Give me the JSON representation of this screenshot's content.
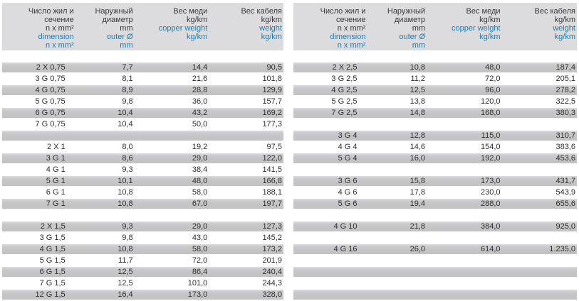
{
  "meta": {
    "colors": {
      "accent_blue": "#1e7dad",
      "header_bg": "#dcdcde",
      "row_gray": "#c5c5c8",
      "text": "#3a3a3a"
    }
  },
  "header": {
    "columns": [
      {
        "key": "dimension",
        "ru": [
          "Число жил и",
          "сечение",
          "n x mm²"
        ],
        "en": [
          "dimension",
          "n x mm²"
        ]
      },
      {
        "key": "outer-diameter",
        "ru": [
          "Наружный",
          "диаметр",
          "mm"
        ],
        "en": [
          "outer Ø",
          "mm"
        ]
      },
      {
        "key": "copper-weight",
        "ru": [
          "Вес меди",
          "kg/km"
        ],
        "en": [
          "copper weight",
          "kg/km"
        ]
      },
      {
        "key": "cable-weight",
        "ru": [
          "Вес кабеля",
          "kg/km"
        ],
        "en": [
          "weight",
          "kg/km"
        ]
      }
    ]
  },
  "tables": [
    {
      "id": "left",
      "rows": [
        [
          "2 X 0,75",
          "7,7",
          "14,4",
          "90,5"
        ],
        [
          "3 G 0,75",
          "8,1",
          "21,6",
          "101,8"
        ],
        [
          "4 G 0,75",
          "8,9",
          "28,8",
          "129,9"
        ],
        [
          "5 G 0,75",
          "9,8",
          "36,0",
          "157,7"
        ],
        [
          "6 G 0,75",
          "10,4",
          "43,2",
          "169,2"
        ],
        [
          "7 G 0,75",
          "10,4",
          "50,0",
          "177,3"
        ],
        null,
        [
          "2 X 1",
          "8,0",
          "19,2",
          "97,5"
        ],
        [
          "3 G 1",
          "8,6",
          "29,0",
          "122,0"
        ],
        [
          "4 G 1",
          "9,3",
          "38,4",
          "141,5"
        ],
        [
          "5 G 1",
          "10,1",
          "48,0",
          "166,8"
        ],
        [
          "6 G 1",
          "10,8",
          "58,0",
          "188,1"
        ],
        [
          "7 G 1",
          "10,8",
          "67,0",
          "197,7"
        ],
        null,
        [
          "2 X 1,5",
          "9,3",
          "29,0",
          "127,3"
        ],
        [
          "3 G 1,5",
          "9,8",
          "43,0",
          "145,2"
        ],
        [
          "4 G 1,5",
          "10,8",
          "58,0",
          "173,2"
        ],
        [
          "5 G 1,5",
          "11,7",
          "72,0",
          "201,9"
        ],
        [
          "6 G 1,5",
          "12,5",
          "86,4",
          "240,4"
        ],
        [
          "7 G 1,5",
          "12,5",
          "101,0",
          "244,3"
        ],
        [
          "12 G 1,5",
          "16,4",
          "173,0",
          "328,0"
        ]
      ]
    },
    {
      "id": "right",
      "rows": [
        [
          "2 X 2,5",
          "10,8",
          "48,0",
          "187,4"
        ],
        [
          "3 G 2,5",
          "11,2",
          "72,0",
          "205,1"
        ],
        [
          "4 G 2,5",
          "12,5",
          "96,0",
          "278,2"
        ],
        [
          "5 G 2,5",
          "13,8",
          "120,0",
          "322,5"
        ],
        [
          "7 G 2,5",
          "14,8",
          "168,0",
          "380,3"
        ],
        null,
        [
          "3 G 4",
          "12,8",
          "115,0",
          "310,7"
        ],
        [
          "4 G 4",
          "14,6",
          "154,0",
          "383,6"
        ],
        [
          "5 G 4",
          "16,0",
          "192,0",
          "453,6"
        ],
        null,
        [
          "3 G 6",
          "15,8",
          "173,0",
          "431,7"
        ],
        [
          "4 G 6",
          "17,8",
          "230,0",
          "543,9"
        ],
        [
          "5 G 6",
          "19,4",
          "288,0",
          "655,6"
        ],
        null,
        [
          "4 G 10",
          "21,8",
          "384,0",
          "925,0"
        ],
        null,
        [
          "4 G 16",
          "26,0",
          "614,0",
          "1.235,0"
        ],
        null,
        null,
        null,
        null
      ]
    }
  ]
}
